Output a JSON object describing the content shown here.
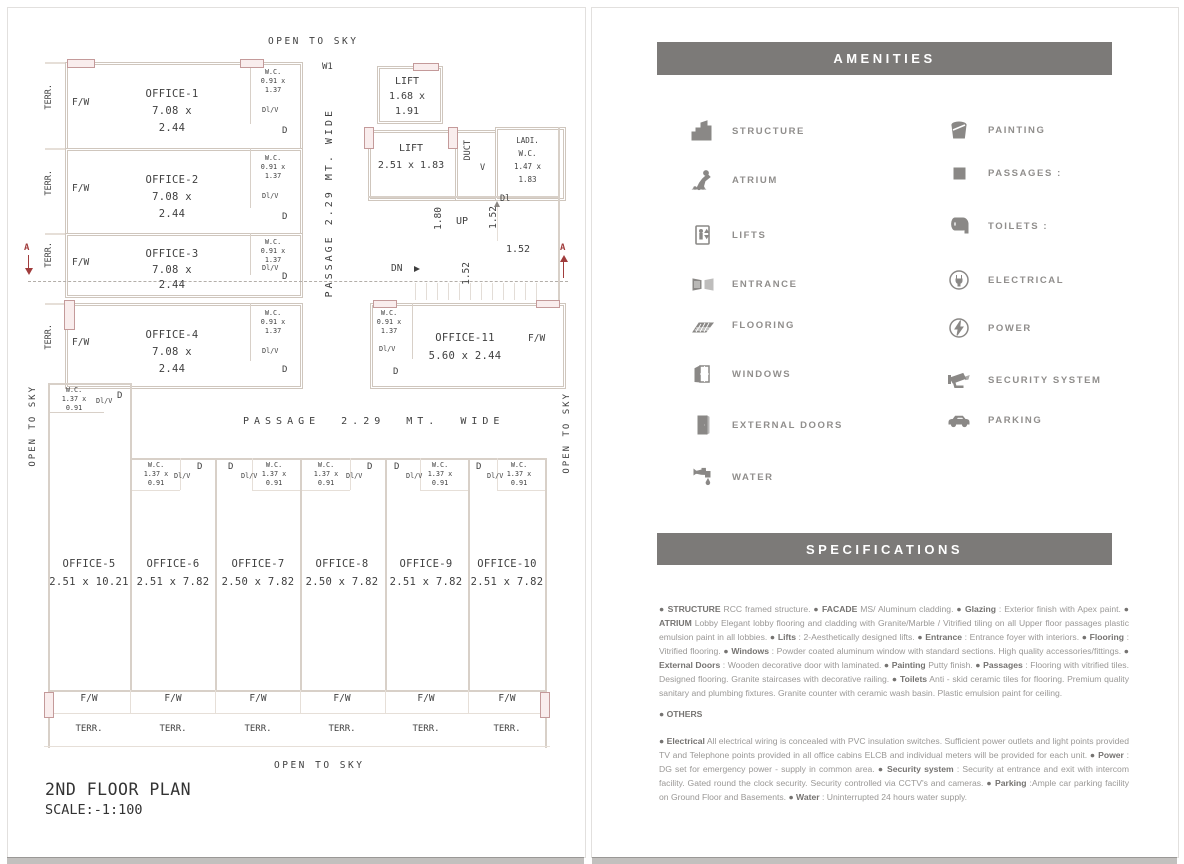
{
  "plan": {
    "title": "2ND FLOOR PLAN",
    "scale": "SCALE:-1:100",
    "open_to_sky": "OPEN TO SKY",
    "passage_vertical": "PASSAGE 2.29 MT. WIDE",
    "passage_horizontal": "PASSAGE 2.29 MT. WIDE",
    "w1": "W1",
    "terr": "TERR.",
    "fw": "F/W",
    "door": "D",
    "dlv": "Dl/V",
    "dl": "Dl",
    "duct": "DUCT",
    "v": "V",
    "up": "UP",
    "dn": "DN",
    "dim_180": "1.80",
    "dim_152": "1.52",
    "section_a": "A",
    "lift1": {
      "label": "LIFT",
      "d1": "1.68 x",
      "d2": "1.91"
    },
    "lift2": {
      "label": "LIFT",
      "dims": "2.51 x 1.83"
    },
    "ladies_wc": {
      "l1": "LADI.",
      "l2": "W.C.",
      "l3": "1.47 x",
      "l4": "1.83"
    },
    "wc_small": {
      "l1": "W.C.",
      "l2": "0.91 x",
      "l3": "1.37"
    },
    "wc_large": {
      "l1": "W.C.",
      "l2": "1.37 x",
      "l3": "0.91"
    },
    "offices_top": [
      {
        "name": "OFFICE-1",
        "d1": "7.08 x",
        "d2": "2.44"
      },
      {
        "name": "OFFICE-2",
        "d1": "7.08 x",
        "d2": "2.44"
      },
      {
        "name": "OFFICE-3",
        "d1": "7.08 x",
        "d2": "2.44"
      },
      {
        "name": "OFFICE-4",
        "d1": "7.08 x",
        "d2": "2.44"
      }
    ],
    "office11": {
      "name": "OFFICE-11",
      "dims": "5.60 x 2.44"
    },
    "offices_bottom": [
      {
        "name": "OFFICE-5",
        "dims": "2.51 x 10.21"
      },
      {
        "name": "OFFICE-6",
        "dims": "2.51 x 7.82"
      },
      {
        "name": "OFFICE-7",
        "dims": "2.50 x 7.82"
      },
      {
        "name": "OFFICE-8",
        "dims": "2.50 x 7.82"
      },
      {
        "name": "OFFICE-9",
        "dims": "2.51 x 7.82"
      },
      {
        "name": "OFFICE-10",
        "dims": "2.51 x 7.82"
      }
    ]
  },
  "amenities": {
    "title": "AMENITIES",
    "left": [
      {
        "icon": "structure-icon",
        "label": "STRUCTURE"
      },
      {
        "icon": "atrium-icon",
        "label": "ATRIUM"
      },
      {
        "icon": "lifts-icon",
        "label": "LIFTS"
      },
      {
        "icon": "entrance-icon",
        "label": "ENTRANCE"
      },
      {
        "icon": "flooring-icon",
        "label": "FLOORING"
      },
      {
        "icon": "windows-icon",
        "label": "WINDOWS"
      },
      {
        "icon": "external-doors-icon",
        "label": "EXTERNAL DOORS"
      },
      {
        "icon": "water-icon",
        "label": "WATER"
      }
    ],
    "right": [
      {
        "icon": "painting-icon",
        "label": "PAINTING"
      },
      {
        "icon": "passages-icon",
        "label": "PASSAGES :"
      },
      {
        "icon": "toilets-icon",
        "label": "TOILETS :"
      },
      {
        "icon": "electrical-icon",
        "label": "ELECTRICAL"
      },
      {
        "icon": "power-icon",
        "label": "POWER"
      },
      {
        "icon": "security-icon",
        "label": "SECURITY SYSTEM"
      },
      {
        "icon": "parking-icon",
        "label": "PARKING"
      }
    ]
  },
  "specifications": {
    "title": "SPECIFICATIONS",
    "para1": [
      {
        "b": 1,
        "t": "● STRUCTURE"
      },
      {
        "b": 0,
        "t": "  RCC framed structure.  "
      },
      {
        "b": 1,
        "t": "● FACADE"
      },
      {
        "b": 0,
        "t": "  MS/ Aluminum cladding. "
      },
      {
        "b": 1,
        "t": "● Glazing"
      },
      {
        "b": 0,
        "t": " : Exterior finish with Apex paint. "
      },
      {
        "b": 1,
        "t": "● ATRIUM"
      },
      {
        "b": 0,
        "t": "  Lobby Elegant lobby flooring and cladding with Granite/Marble / Vitrified tiling on all Upper floor passages plastic emulsion paint in all lobbies. "
      },
      {
        "b": 1,
        "t": "● Lifts"
      },
      {
        "b": 0,
        "t": " :  2-Aesthetically designed lifts. "
      },
      {
        "b": 1,
        "t": "● Entrance"
      },
      {
        "b": 0,
        "t": " : Entrance foyer with interiors. "
      },
      {
        "b": 1,
        "t": "● Flooring"
      },
      {
        "b": 0,
        "t": " : Vitrified flooring. "
      },
      {
        "b": 1,
        "t": "● Windows"
      },
      {
        "b": 0,
        "t": " : Powder coated aluminum window with standard sections. High quality accessories/fittings. "
      },
      {
        "b": 1,
        "t": "● External Doors"
      },
      {
        "b": 0,
        "t": " : Wooden decorative door with laminated. "
      },
      {
        "b": 1,
        "t": "● Painting"
      },
      {
        "b": 0,
        "t": "  Putty finish. "
      },
      {
        "b": 1,
        "t": "● Passages"
      },
      {
        "b": 0,
        "t": " : Flooring with vitrified tiles. Designed flooring. Granite staircases with decorative railing. "
      },
      {
        "b": 1,
        "t": "● Toilets"
      },
      {
        "b": 0,
        "t": "  Anti - skid ceramic tiles for flooring. Premium quality sanitary and plumbing fixtures. Granite counter with ceramic wash basin. Plastic emulsion paint for ceiling."
      }
    ],
    "others": "● OTHERS",
    "para2": [
      {
        "b": 1,
        "t": "● Electrical"
      },
      {
        "b": 0,
        "t": "  All electrical wiring is concealed with PVC insulation switches. Sufficient power outlets and light points provided TV and Telephone points provided in all office cabins ELCB and individual meters will be provided for each unit. "
      },
      {
        "b": 1,
        "t": "● Power"
      },
      {
        "b": 0,
        "t": " : DG set for emergency power - supply in common area. "
      },
      {
        "b": 1,
        "t": "● Security system"
      },
      {
        "b": 0,
        "t": " : Security at entrance and exit with intercom facility. Gated round the clock security. Security controlled via CCTV's and cameras. "
      },
      {
        "b": 1,
        "t": "● Parking"
      },
      {
        "b": 0,
        "t": " :Ample car parking facility on Ground Floor and  Basements. "
      },
      {
        "b": 1,
        "t": "● Water"
      },
      {
        "b": 0,
        "t": " : Uninterrupted 24 hours water supply."
      }
    ]
  },
  "colors": {
    "header_bar": "#7c7a78",
    "accent_red": "#a03c3c"
  }
}
